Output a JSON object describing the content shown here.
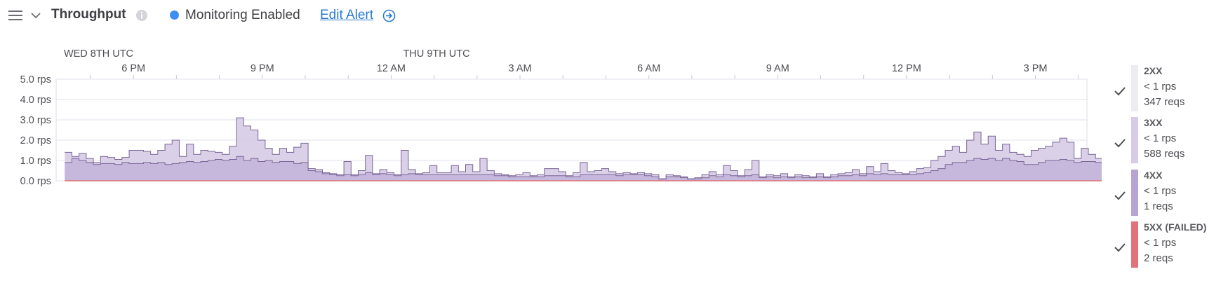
{
  "header": {
    "title": "Throughput",
    "monitoring_text": "Monitoring Enabled",
    "edit_alert_label": "Edit Alert",
    "icons": [
      "menu-icon",
      "chevron-down-icon",
      "info-icon",
      "status-dot",
      "arrow-right-circle-icon"
    ],
    "monitoring_color": "#3d8ef2",
    "link_color": "#2a7ad4"
  },
  "legend": [
    {
      "name": "2XX",
      "rate": "< 1 rps",
      "reqs": "347 reqs",
      "checked": true,
      "color": "#ececf1"
    },
    {
      "name": "3XX",
      "rate": "< 1 rps",
      "reqs": "588 reqs",
      "checked": true,
      "color": "#d6cce6"
    },
    {
      "name": "4XX",
      "rate": "< 1 rps",
      "reqs": "1 reqs",
      "checked": true,
      "color": "#b6a4d2"
    },
    {
      "name": "5XX (FAILED)",
      "rate": "< 1 rps",
      "reqs": "2 reqs",
      "checked": true,
      "color": "#e0727a"
    }
  ],
  "chart_data": {
    "type": "area",
    "title": "Throughput",
    "date_labels": [
      {
        "label": "WED 8TH UTC",
        "hour": 0
      },
      {
        "label": "THU 9TH UTC",
        "hour": 7.9
      }
    ],
    "x_ticks": [
      {
        "label": "6 PM",
        "hour": 1
      },
      {
        "label": "9 PM",
        "hour": 4
      },
      {
        "label": "12 AM",
        "hour": 7
      },
      {
        "label": "3 AM",
        "hour": 10
      },
      {
        "label": "6 AM",
        "hour": 13
      },
      {
        "label": "9 AM",
        "hour": 16
      },
      {
        "label": "12 PM",
        "hour": 19
      },
      {
        "label": "3 PM",
        "hour": 22
      }
    ],
    "x_range_hours": [
      -0.8,
      23.2
    ],
    "bucket_minutes": 10,
    "y_ticks": [
      "0.0 rps",
      "1.0 rps",
      "2.0 rps",
      "3.0 rps",
      "4.0 rps",
      "5.0 rps"
    ],
    "ylim": [
      0,
      5
    ],
    "grid": true,
    "series": [
      {
        "name": "3XX",
        "color": "#d6cce6",
        "values": [
          1.4,
          1.2,
          1.35,
          1.1,
          0.9,
          1.2,
          1.15,
          1.05,
          1.15,
          1.5,
          1.5,
          1.45,
          1.3,
          1.5,
          1.8,
          2.0,
          1.2,
          1.8,
          1.3,
          1.5,
          1.45,
          1.4,
          1.3,
          1.7,
          3.1,
          2.7,
          2.5,
          2.0,
          1.6,
          1.3,
          1.6,
          1.4,
          1.65,
          1.85,
          0.6,
          0.55,
          0.4,
          0.35,
          0.3,
          0.95,
          0.3,
          0.5,
          1.25,
          0.35,
          0.55,
          0.4,
          0.3,
          1.5,
          0.55,
          0.35,
          0.4,
          0.75,
          0.4,
          0.4,
          0.75,
          0.45,
          0.8,
          0.45,
          1.1,
          0.5,
          0.35,
          0.3,
          0.25,
          0.3,
          0.4,
          0.25,
          0.3,
          0.6,
          0.6,
          0.45,
          0.25,
          0.4,
          0.9,
          0.45,
          0.5,
          0.6,
          0.45,
          0.35,
          0.4,
          0.35,
          0.4,
          0.35,
          0.3,
          0.1,
          0.3,
          0.25,
          0.2,
          0.1,
          0.15,
          0.3,
          0.45,
          0.3,
          0.75,
          0.5,
          0.25,
          0.55,
          1.0,
          0.2,
          0.3,
          0.25,
          0.35,
          0.2,
          0.3,
          0.25,
          0.2,
          0.35,
          0.2,
          0.3,
          0.35,
          0.4,
          0.55,
          0.35,
          0.7,
          0.45,
          0.85,
          0.5,
          0.4,
          0.35,
          0.45,
          0.6,
          0.65,
          1.0,
          1.2,
          1.5,
          1.7,
          1.4,
          2.0,
          2.4,
          1.8,
          2.2,
          1.5,
          1.8,
          1.4,
          1.3,
          1.2,
          1.5,
          1.6,
          1.7,
          1.9,
          2.1,
          1.9,
          1.1,
          1.6,
          1.3,
          1.1,
          1.5,
          1.4,
          1.0
        ]
      },
      {
        "name": "4XX",
        "color": "#b6a4d2",
        "values": [
          0.9,
          1.1,
          1.0,
          0.9,
          0.8,
          0.85,
          0.85,
          0.8,
          0.9,
          0.85,
          0.85,
          0.9,
          0.85,
          0.9,
          0.8,
          0.85,
          0.9,
          0.95,
          0.9,
          0.95,
          1.0,
          1.05,
          1.0,
          1.05,
          1.2,
          1.0,
          1.1,
          0.95,
          1.0,
          0.9,
          0.95,
          0.95,
          0.85,
          0.9,
          0.5,
          0.45,
          0.35,
          0.3,
          0.25,
          0.3,
          0.25,
          0.3,
          0.4,
          0.3,
          0.35,
          0.3,
          0.25,
          0.3,
          0.35,
          0.3,
          0.3,
          0.3,
          0.3,
          0.3,
          0.3,
          0.3,
          0.3,
          0.3,
          0.3,
          0.3,
          0.25,
          0.25,
          0.2,
          0.2,
          0.2,
          0.2,
          0.2,
          0.25,
          0.25,
          0.25,
          0.2,
          0.2,
          0.3,
          0.3,
          0.3,
          0.3,
          0.3,
          0.25,
          0.3,
          0.3,
          0.3,
          0.25,
          0.2,
          0.08,
          0.2,
          0.2,
          0.15,
          0.08,
          0.1,
          0.15,
          0.25,
          0.2,
          0.3,
          0.25,
          0.2,
          0.25,
          0.3,
          0.15,
          0.2,
          0.15,
          0.2,
          0.15,
          0.2,
          0.15,
          0.15,
          0.2,
          0.15,
          0.2,
          0.25,
          0.25,
          0.3,
          0.25,
          0.35,
          0.3,
          0.35,
          0.3,
          0.3,
          0.3,
          0.3,
          0.35,
          0.4,
          0.5,
          0.6,
          0.8,
          0.9,
          0.9,
          1.0,
          1.1,
          1.05,
          1.1,
          1.0,
          1.1,
          1.0,
          0.95,
          0.8,
          0.8,
          0.9,
          1.0,
          1.0,
          1.05,
          1.0,
          0.9,
          0.95,
          0.95,
          0.9,
          1.0,
          0.95,
          0.8
        ]
      },
      {
        "name": "5XX (FAILED)",
        "color": "#e0727a",
        "values": [
          0.0,
          0.0,
          0.0,
          0.0,
          0.0,
          0.0,
          0.0,
          0.0,
          0.0,
          0.0,
          0.0,
          0.0,
          0.0,
          0.0,
          0.0,
          0.0,
          0.0,
          0.0,
          0.0,
          0.0,
          0.0,
          0.0,
          0.0,
          0.0,
          0.0,
          0.0,
          0.0,
          0.0,
          0.0,
          0.0,
          0.0,
          0.0,
          0.0,
          0.0,
          0.0,
          0.0,
          0.0,
          0.0,
          0.0,
          0.0,
          0.0,
          0.0,
          0.0,
          0.0,
          0.0,
          0.0,
          0.0,
          0.0,
          0.0,
          0.0,
          0.0,
          0.0,
          0.0,
          0.0,
          0.0,
          0.0,
          0.0,
          0.0,
          0.0,
          0.0,
          0.0,
          0.0,
          0.0,
          0.0,
          0.0,
          0.0,
          0.0,
          0.0,
          0.0,
          0.0,
          0.0,
          0.0,
          0.0,
          0.0,
          0.0,
          0.0,
          0.0,
          0.0,
          0.0,
          0.0,
          0.0,
          0.0,
          0.0,
          0.0,
          0.0,
          0.0,
          0.0,
          0.0,
          0.0,
          0.0,
          0.0,
          0.0,
          0.0,
          0.0,
          0.0,
          0.0,
          0.0,
          0.0,
          0.0,
          0.0,
          0.0,
          0.0,
          0.0,
          0.0,
          0.0,
          0.0,
          0.0,
          0.0,
          0.0,
          0.0,
          0.0,
          0.0,
          0.0,
          0.0,
          0.0,
          0.0,
          0.0,
          0.0,
          0.0,
          0.0,
          0.0,
          0.0,
          0.0,
          0.0,
          0.0,
          0.0,
          0.0,
          0.0,
          0.0,
          0.0,
          0.0,
          0.0,
          0.0,
          0.0,
          0.0,
          0.0,
          0.0,
          0.0,
          0.0,
          0.0,
          0.0,
          0.0,
          0.0,
          0.0,
          0.0,
          0.0,
          0.0,
          0.0
        ]
      }
    ]
  }
}
